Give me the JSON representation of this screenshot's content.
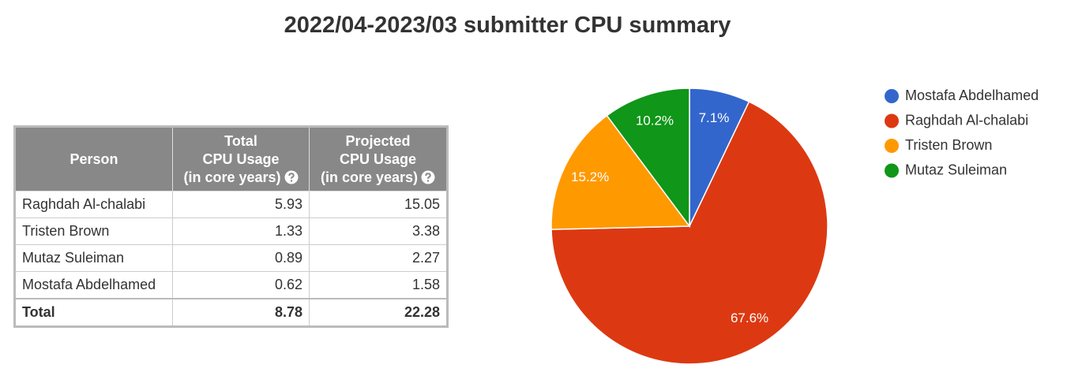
{
  "title": "2022/04-2023/03 submitter CPU summary",
  "table": {
    "header": [
      [
        "Person"
      ],
      [
        "Total",
        "CPU Usage",
        "(in core years)"
      ],
      [
        "Projected",
        "CPU Usage",
        "(in core years)"
      ]
    ],
    "rows": [
      [
        "Raghdah Al-chalabi",
        "5.93",
        "15.05"
      ],
      [
        "Tristen Brown",
        "1.33",
        "3.38"
      ],
      [
        "Mutaz Suleiman",
        "0.89",
        "2.27"
      ],
      [
        "Mostafa Abdelhamed",
        "0.62",
        "1.58"
      ]
    ],
    "total": [
      "Total",
      "8.78",
      "22.28"
    ]
  },
  "chart_data": {
    "type": "pie",
    "categories": [
      "Mostafa Abdelhamed",
      "Raghdah Al-chalabi",
      "Tristen Brown",
      "Mutaz Suleiman"
    ],
    "values": [
      7.1,
      67.6,
      15.2,
      10.2
    ],
    "value_labels": [
      "7.1%",
      "67.6%",
      "15.2%",
      "10.2%"
    ],
    "colors": [
      "#3366cc",
      "#dc3912",
      "#ff9900",
      "#109618"
    ],
    "legend": "right"
  }
}
